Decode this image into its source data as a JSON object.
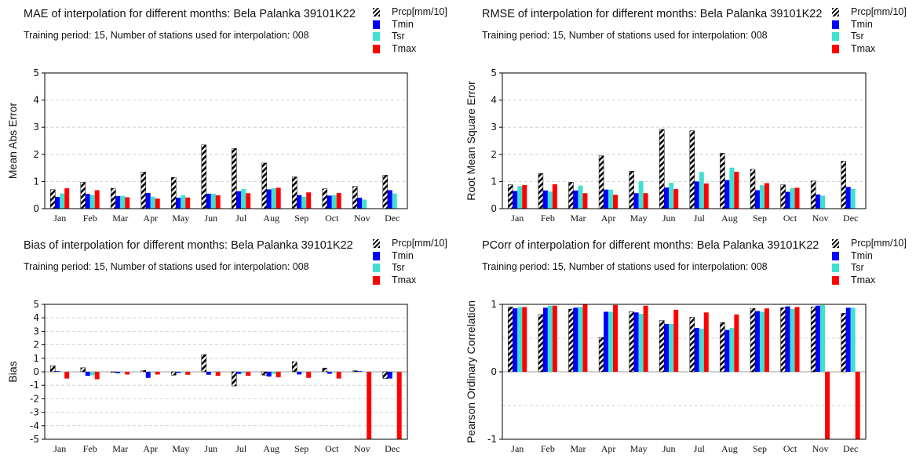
{
  "colors": {
    "Prcp": "#000000",
    "Tmin": "#0000ff",
    "Tsr": "#40e0d0",
    "Tmax": "#ff0000"
  },
  "legend": [
    {
      "key": "Prcp",
      "label": "Prcp[mm/10]"
    },
    {
      "key": "Tmin",
      "label": "Tmin"
    },
    {
      "key": "Tsr",
      "label": "Tsr"
    },
    {
      "key": "Tmax",
      "label": "Tmax"
    }
  ],
  "panels": [
    {
      "title": "MAE of interpolation for different months: Bela Palanka  39101K22",
      "subtitle": "Training period: 15, Number of stations used for interpolation: 008"
    },
    {
      "title": "RMSE of interpolation for different months: Bela Palanka  39101K22",
      "subtitle": "Training period: 15, Number of stations used for interpolation: 008"
    },
    {
      "title": "Bias of interpolation for different months: Bela Palanka  39101K22",
      "subtitle": "Training period: 15, Number of stations used for interpolation: 008"
    },
    {
      "title": "PCorr of interpolation for different months: Bela Palanka  39101K22",
      "subtitle": "Training period: 15, Number of stations used for interpolation: 008"
    }
  ],
  "chart_data": [
    {
      "type": "bar",
      "title": "MAE of interpolation for different months: Bela Palanka  39101K22",
      "ylabel": "Mean Abs Error",
      "categories": [
        "Jan",
        "Feb",
        "Mar",
        "Apr",
        "May",
        "Jun",
        "Jul",
        "Aug",
        "Sep",
        "Oct",
        "Nov",
        "Dec"
      ],
      "ylim": [
        0,
        5
      ],
      "yticks": [
        "0",
        "1",
        "2",
        "3",
        "4",
        "5"
      ],
      "grid": true,
      "legend": "top-right",
      "series": [
        {
          "name": "Prcp[mm/10]",
          "values": [
            0.7,
            0.97,
            0.75,
            1.35,
            1.15,
            2.35,
            2.22,
            1.68,
            1.17,
            0.73,
            0.82,
            1.23
          ]
        },
        {
          "name": "Tmin",
          "values": [
            0.43,
            0.54,
            0.46,
            0.58,
            0.4,
            0.55,
            0.64,
            0.71,
            0.5,
            0.48,
            0.4,
            0.68
          ]
        },
        {
          "name": "Tsr",
          "values": [
            0.56,
            0.5,
            0.47,
            0.44,
            0.49,
            0.55,
            0.72,
            0.75,
            0.44,
            0.5,
            0.33,
            0.56
          ]
        },
        {
          "name": "Tmax",
          "values": [
            0.75,
            0.68,
            0.42,
            0.37,
            0.41,
            0.49,
            0.57,
            0.77,
            0.6,
            0.58,
            null,
            null
          ]
        }
      ]
    },
    {
      "type": "bar",
      "title": "RMSE of interpolation for different months: Bela Palanka  39101K22",
      "ylabel": "Root Mean Square Error",
      "categories": [
        "Jan",
        "Feb",
        "Mar",
        "Apr",
        "May",
        "Jun",
        "Jul",
        "Aug",
        "Sep",
        "Oct",
        "Nov",
        "Dec"
      ],
      "ylim": [
        0,
        5
      ],
      "yticks": [
        "0",
        "1",
        "2",
        "3",
        "4",
        "5"
      ],
      "grid": true,
      "legend": "top-right",
      "series": [
        {
          "name": "Prcp[mm/10]",
          "values": [
            0.88,
            1.3,
            0.97,
            1.95,
            1.38,
            2.92,
            2.87,
            2.04,
            1.45,
            0.88,
            1.02,
            1.75
          ]
        },
        {
          "name": "Tmin",
          "values": [
            0.65,
            0.67,
            0.67,
            0.7,
            0.57,
            0.78,
            1.0,
            1.05,
            0.68,
            0.62,
            0.52,
            0.8
          ]
        },
        {
          "name": "Tsr",
          "values": [
            0.83,
            0.63,
            0.85,
            0.7,
            1.01,
            0.95,
            1.35,
            1.51,
            0.86,
            0.76,
            0.48,
            0.73
          ]
        },
        {
          "name": "Tmax",
          "values": [
            0.87,
            0.9,
            0.57,
            0.51,
            0.57,
            0.72,
            0.93,
            1.36,
            0.94,
            0.77,
            null,
            null
          ]
        }
      ]
    },
    {
      "type": "bar",
      "title": "Bias of interpolation for different months: Bela Palanka  39101K22",
      "ylabel": "Bias",
      "categories": [
        "Jan",
        "Feb",
        "Mar",
        "Apr",
        "May",
        "Jun",
        "Jul",
        "Aug",
        "Sep",
        "Oct",
        "Nov",
        "Dec"
      ],
      "ylim": [
        -5,
        5
      ],
      "yticks": [
        "-5",
        "-4",
        "-3",
        "-2",
        "-1",
        "0",
        "1",
        "2",
        "3",
        "4",
        "5"
      ],
      "grid": true,
      "legend": "top-right",
      "series": [
        {
          "name": "Prcp[mm/10]",
          "values": [
            0.45,
            0.3,
            -0.05,
            0.1,
            -0.25,
            1.28,
            -1.05,
            -0.25,
            0.75,
            0.28,
            0.08,
            -0.5
          ]
        },
        {
          "name": "Tmin",
          "values": [
            0.05,
            -0.3,
            -0.1,
            -0.45,
            -0.08,
            -0.22,
            -0.15,
            -0.35,
            -0.2,
            -0.15,
            0.05,
            -0.5
          ]
        },
        {
          "name": "Tsr",
          "values": [
            0.02,
            -0.25,
            -0.05,
            -0.05,
            -0.05,
            -0.05,
            -0.1,
            -0.15,
            -0.05,
            -0.05,
            0.02,
            -0.05
          ]
        },
        {
          "name": "Tmax",
          "values": [
            -0.5,
            -0.55,
            -0.2,
            -0.2,
            -0.22,
            -0.3,
            -0.3,
            -0.4,
            -0.45,
            -0.5,
            -5,
            -5
          ]
        }
      ]
    },
    {
      "type": "bar",
      "title": "PCorr of interpolation for different months: Bela Palanka  39101K22",
      "ylabel": "Pearson Ordinary Correlation",
      "categories": [
        "Jan",
        "Feb",
        "Mar",
        "Apr",
        "May",
        "Jun",
        "Jul",
        "Aug",
        "Sep",
        "Oct",
        "Nov",
        "Dec"
      ],
      "ylim": [
        -1,
        1
      ],
      "yticks": [
        "-1",
        "0",
        "1"
      ],
      "grid": true,
      "legend": "top-right",
      "series": [
        {
          "name": "Prcp[mm/10]",
          "values": [
            0.96,
            0.85,
            0.93,
            0.51,
            0.89,
            0.76,
            0.81,
            0.73,
            0.94,
            0.95,
            0.96,
            0.87
          ]
        },
        {
          "name": "Tmin",
          "values": [
            0.94,
            0.95,
            0.95,
            0.89,
            0.88,
            0.71,
            0.65,
            0.62,
            0.9,
            0.97,
            0.98,
            0.95
          ]
        },
        {
          "name": "Tsr",
          "values": [
            0.96,
            0.98,
            0.96,
            0.89,
            0.86,
            0.71,
            0.64,
            0.65,
            0.89,
            0.93,
            0.99,
            0.95
          ]
        },
        {
          "name": "Tmax",
          "values": [
            0.96,
            0.98,
            1.0,
            0.99,
            0.98,
            0.92,
            0.88,
            0.85,
            0.94,
            0.96,
            -1,
            -1
          ]
        }
      ]
    }
  ]
}
